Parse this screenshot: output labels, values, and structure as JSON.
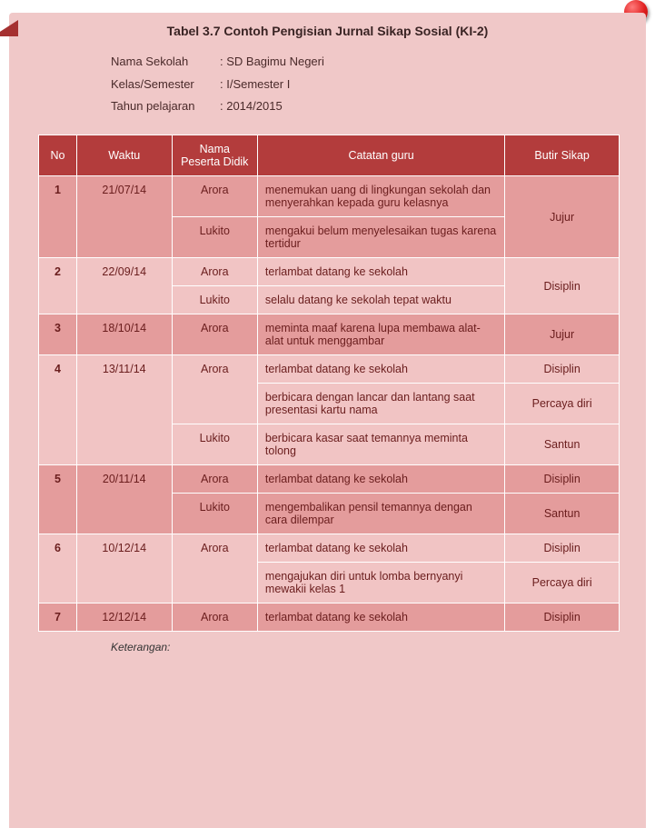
{
  "title": "Tabel 3.7 Contoh Pengisian Jurnal Sikap Sosial (KI-2)",
  "meta": {
    "sekolah_label": "Nama Sekolah",
    "sekolah_value": ": SD Bagimu Negeri",
    "kelas_label": "Kelas/Semester",
    "kelas_value": ": I/Semester I",
    "tahun_label": "Tahun pelajaran",
    "tahun_value": ": 2014/2015"
  },
  "columns": {
    "no": "No",
    "waktu": "Waktu",
    "nama": "Nama Peserta Didik",
    "catatan": "Catatan guru",
    "sikap": "Butir Sikap"
  },
  "rows": {
    "r1_no": "1",
    "r1_waktu": "21/07/14",
    "r1_nama_a": "Arora",
    "r1_cat_a": "menemukan uang di lingkungan sekolah dan menyerahkan kepada guru kelasnya",
    "r1_nama_b": "Lukito",
    "r1_cat_b": "mengakui belum menyelesaikan tugas karena tertidur",
    "r1_sikap": "Jujur",
    "r2_no": "2",
    "r2_waktu": "22/09/14",
    "r2_nama_a": "Arora",
    "r2_cat_a": "terlambat datang ke sekolah",
    "r2_nama_b": "Lukito",
    "r2_cat_b": "selalu datang ke sekolah tepat waktu",
    "r2_sikap": "Disiplin",
    "r3_no": "3",
    "r3_waktu": "18/10/14",
    "r3_nama_a": "Arora",
    "r3_cat_a": "meminta maaf karena lupa membawa alat-alat untuk menggambar",
    "r3_sikap": "Jujur",
    "r4_no": "4",
    "r4_waktu": "13/11/14",
    "r4_nama_a": "Arora",
    "r4_cat_a": "terlambat datang ke sekolah",
    "r4_sikap_a": "Disiplin",
    "r4_cat_b": "berbicara dengan lancar dan lantang saat presentasi kartu nama",
    "r4_sikap_b": "Percaya diri",
    "r4_nama_c": "Lukito",
    "r4_cat_c": "berbicara kasar saat temannya meminta tolong",
    "r4_sikap_c": "Santun",
    "r5_no": "5",
    "r5_waktu": "20/11/14",
    "r5_nama_a": "Arora",
    "r5_cat_a": "terlambat datang ke sekolah",
    "r5_sikap_a": "Disiplin",
    "r5_nama_b": "Lukito",
    "r5_cat_b": "mengembalikan pensil temannya dengan cara dilempar",
    "r5_sikap_b": "Santun",
    "r6_no": "6",
    "r6_waktu": "10/12/14",
    "r6_nama_a": "Arora",
    "r6_cat_a": "terlambat datang ke sekolah",
    "r6_sikap_a": "Disiplin",
    "r6_cat_b": "mengajukan diri untuk lomba bernyanyi mewakii kelas 1",
    "r6_sikap_b": "Percaya diri",
    "r7_no": "7",
    "r7_waktu": "12/12/14",
    "r7_nama_a": "Arora",
    "r7_cat_a": "terlambat datang ke sekolah",
    "r7_sikap_a": "Disiplin"
  },
  "keterangan_label": "Keterangan:",
  "style": {
    "header_bg": "#b33c3c",
    "row_dark_bg": "#e49c9c",
    "row_light_bg": "#f1c4c4",
    "page_bg": "#f0c8c8",
    "text_color": "#6a1d1d",
    "widths": {
      "no": 40,
      "waktu": 100,
      "nama": 90,
      "catatan": 260,
      "sikap": 120
    },
    "font_family": "Verdana",
    "body_font_size_pt": 9,
    "title_font_size_pt": 11
  }
}
